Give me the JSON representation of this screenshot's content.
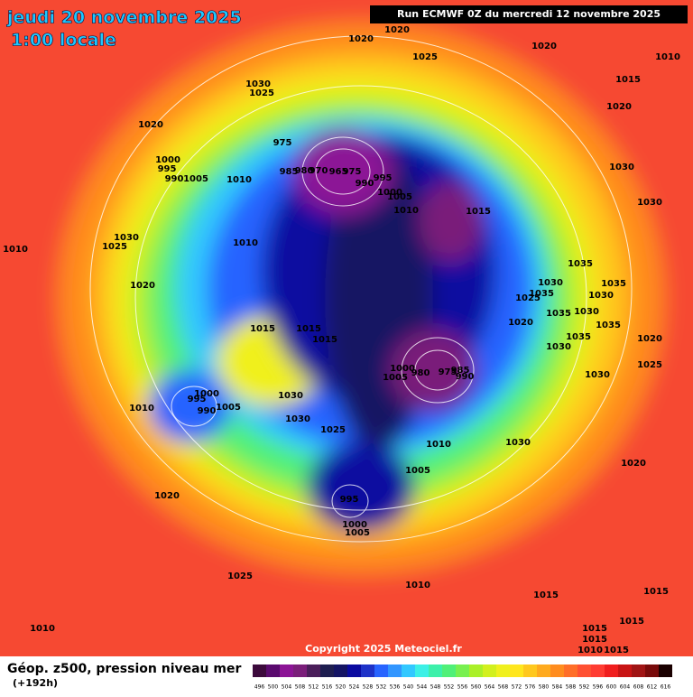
{
  "header": {
    "date": "jeudi 20 novembre 2025",
    "time": "1:00 locale",
    "run": "Run ECMWF 0Z du mercredi 12 novembre 2025"
  },
  "map": {
    "isobar_labels": [
      1020,
      1020,
      1020,
      1010,
      1025,
      1030,
      1025,
      1015,
      1020,
      1020,
      975,
      1000,
      995,
      990,
      1005,
      1010,
      985,
      980,
      970,
      965,
      975,
      990,
      995,
      1000,
      1005,
      1010,
      1015,
      1030,
      1030,
      1030,
      1025,
      1010,
      1010,
      1035,
      1035,
      1030,
      1035,
      1025,
      1030,
      1020,
      1035,
      1030,
      1035,
      1015,
      1015,
      1015,
      1020,
      1035,
      1020,
      1030,
      1025,
      1000,
      1005,
      980,
      975,
      985,
      990,
      1030,
      1000,
      995,
      990,
      1005,
      1010,
      1030,
      1030,
      1025,
      1010,
      1030,
      1005,
      1020,
      1020,
      995,
      1000,
      1005,
      1025,
      1010,
      1015,
      1015,
      1010,
      1015,
      1015,
      1015,
      1010,
      1015
    ],
    "copyright": "Copyright 2025 Meteociel.fr"
  },
  "footer": {
    "title": "Géop. z500, pression niveau mer",
    "lead": "(+192h)"
  },
  "legend": {
    "values": [
      496,
      500,
      504,
      508,
      512,
      516,
      520,
      524,
      528,
      532,
      536,
      540,
      544,
      548,
      552,
      556,
      560,
      564,
      568,
      572,
      576,
      580,
      584,
      588,
      592,
      596,
      600,
      604,
      608,
      612,
      616
    ],
    "colors": [
      "#3c0a3c",
      "#5a0a6e",
      "#8c1496",
      "#7a1e7a",
      "#4a1e5a",
      "#1e1e50",
      "#141464",
      "#0a0aa0",
      "#1e32c8",
      "#2864ff",
      "#3296ff",
      "#32c8ff",
      "#3cf0e6",
      "#3cf0aa",
      "#50f078",
      "#78f050",
      "#aaf028",
      "#d2f01e",
      "#f0f01e",
      "#ffe61e",
      "#ffc81e",
      "#ffaa1e",
      "#ff8c1e",
      "#ff6e28",
      "#ff5032",
      "#ff3c32",
      "#f01e1e",
      "#c81414",
      "#a01414",
      "#780a0a",
      "#1a0000"
    ]
  }
}
